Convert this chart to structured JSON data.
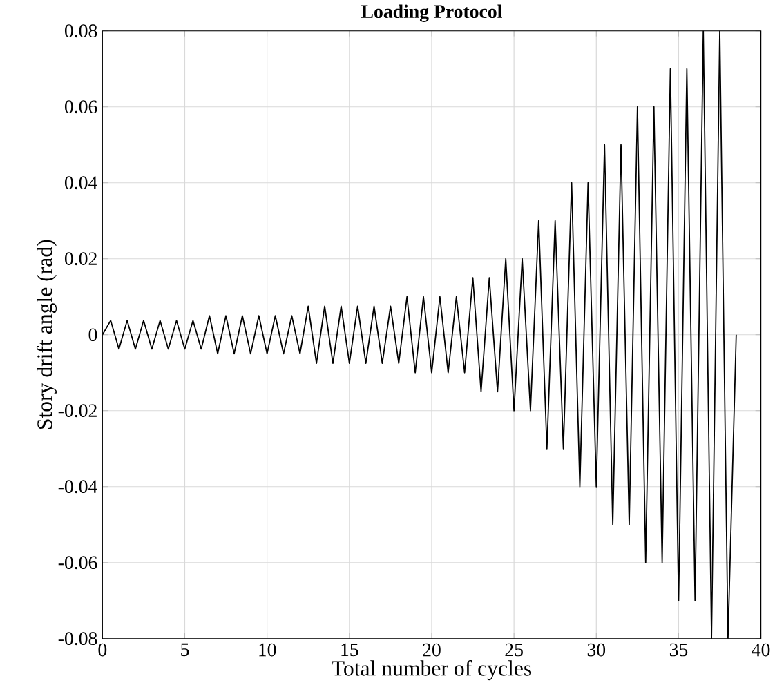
{
  "chart_data": {
    "type": "line",
    "title": "Loading Protocol",
    "xlabel": "Total number of cycles",
    "ylabel": "Story drift angle (rad)",
    "x": [
      0,
      0.5,
      1,
      1.5,
      2,
      2.5,
      3,
      3.5,
      4,
      4.5,
      5,
      5.5,
      6,
      6.5,
      7,
      7.5,
      8,
      8.5,
      9,
      9.5,
      10,
      10.5,
      11,
      11.5,
      12,
      12.5,
      13,
      13.5,
      14,
      14.5,
      15,
      15.5,
      16,
      16.5,
      17,
      17.5,
      18,
      18.5,
      19,
      19.5,
      20,
      20.5,
      21,
      21.5,
      22,
      22.5,
      23,
      23.5,
      24,
      24.5,
      25,
      25.5,
      26,
      26.5,
      27,
      27.5,
      28,
      28.5,
      29,
      29.5,
      30,
      30.5,
      31,
      31.5,
      32,
      32.5,
      33,
      33.5,
      34,
      34.5,
      35,
      35.5,
      36,
      36.5,
      37,
      37.5,
      38,
      38.5
    ],
    "series": [
      {
        "color": "#000000",
        "values": [
          0,
          0.00375,
          -0.00375,
          0.00375,
          -0.00375,
          0.00375,
          -0.00375,
          0.00375,
          -0.00375,
          0.00375,
          -0.00375,
          0.00375,
          -0.00375,
          0.005,
          -0.005,
          0.005,
          -0.005,
          0.005,
          -0.005,
          0.005,
          -0.005,
          0.005,
          -0.005,
          0.005,
          -0.005,
          0.0075,
          -0.0075,
          0.0075,
          -0.0075,
          0.0075,
          -0.0075,
          0.0075,
          -0.0075,
          0.0075,
          -0.0075,
          0.0075,
          -0.0075,
          0.01,
          -0.01,
          0.01,
          -0.01,
          0.01,
          -0.01,
          0.01,
          -0.01,
          0.015,
          -0.015,
          0.015,
          -0.015,
          0.02,
          -0.02,
          0.02,
          -0.02,
          0.03,
          -0.03,
          0.03,
          -0.03,
          0.04,
          -0.04,
          0.04,
          -0.04,
          0.05,
          -0.05,
          0.05,
          -0.05,
          0.06,
          -0.06,
          0.06,
          -0.06,
          0.07,
          -0.07,
          0.07,
          -0.07,
          0.08,
          -0.08,
          0.08,
          -0.08,
          0
        ]
      }
    ],
    "xlim": [
      0,
      40
    ],
    "ylim": [
      -0.08,
      0.08
    ],
    "xticks": [
      0,
      5,
      10,
      15,
      20,
      25,
      30,
      35,
      40
    ],
    "yticks": [
      -0.08,
      -0.06,
      -0.04,
      -0.02,
      0,
      0.02,
      0.04,
      0.06,
      0.08
    ],
    "grid": true,
    "marker": "none",
    "line_style": "solid"
  }
}
